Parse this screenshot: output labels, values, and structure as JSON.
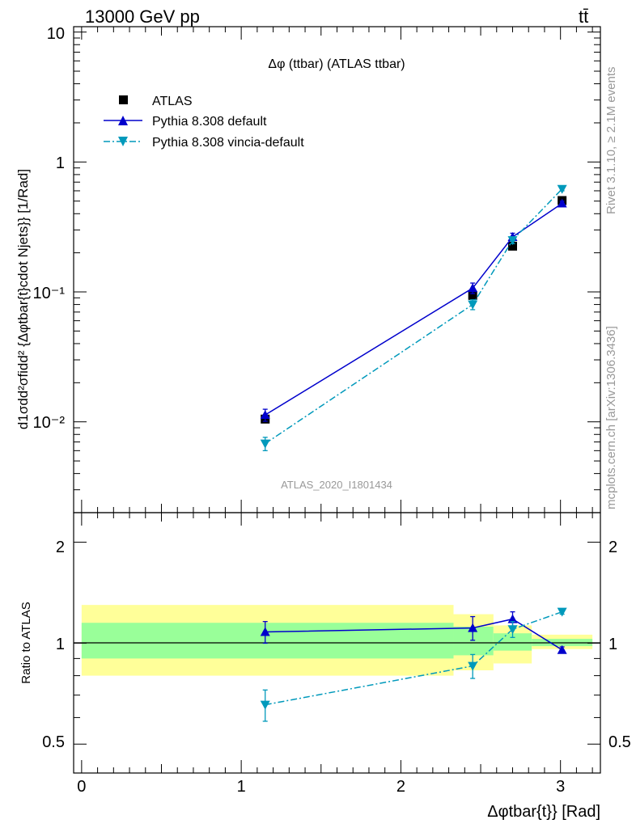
{
  "header": {
    "energy_label": "13000 GeV pp",
    "process_label": "tt̄"
  },
  "side_labels": {
    "rivet": "Rivet 3.1.10, ≥ 2.1M events",
    "mcplots": "mcplots.cern.ch [arXiv:1306.3436]"
  },
  "chart_data": [
    {
      "type": "scatter",
      "panel": "main",
      "title": "Δφ (ttbar) (ATLAS ttbar)",
      "watermark": "ATLAS_2020_I1801434",
      "ylabel": "d1σdd²σfidd² {Δφtbar{t}cdot Njets}} [1/Rad]",
      "yscale": "log",
      "ylim": [
        0.002,
        11
      ],
      "xlim": [
        -0.05,
        3.25
      ],
      "ytick_labels": [
        "10",
        "1",
        "10⁻¹",
        "10⁻²"
      ],
      "x": [
        1.15,
        2.45,
        2.7,
        3.01
      ],
      "series": [
        {
          "name": "ATLAS",
          "values": [
            0.0105,
            0.094,
            0.225,
            0.505
          ],
          "errors": [
            0.0005,
            0.004,
            0.01,
            0.02
          ],
          "color": "#000000",
          "marker": "square"
        },
        {
          "name": "Pythia 8.308 default",
          "values": [
            0.0113,
            0.107,
            0.265,
            0.48
          ],
          "errors": [
            0.0012,
            0.01,
            0.018,
            0.02
          ],
          "color": "#0000cc",
          "marker": "triangle-up",
          "line": "solid"
        },
        {
          "name": "Pythia 8.308 vincia-default",
          "values": [
            0.0068,
            0.08,
            0.25,
            0.62
          ],
          "errors": [
            0.0008,
            0.007,
            0.015,
            0.02
          ],
          "color": "#0099bb",
          "marker": "triangle-down",
          "line": "dashdot"
        }
      ],
      "legend_position": "top-left"
    },
    {
      "type": "scatter",
      "panel": "ratio",
      "ylabel": "Ratio to ATLAS",
      "xlabel": "Δφtbar{t}} [Rad]",
      "yscale": "log",
      "ylim": [
        0.41,
        2.45
      ],
      "xlim": [
        -0.05,
        3.25
      ],
      "x_ticks": [
        0,
        1,
        2,
        3
      ],
      "x_tick_labels": [
        "0",
        "1",
        "2",
        "3"
      ],
      "y_tick_labels": [
        "2",
        "1",
        "0.5"
      ],
      "bins": [
        [
          0,
          2.33
        ],
        [
          2.33,
          2.58
        ],
        [
          2.58,
          2.82
        ],
        [
          2.82,
          3.2
        ]
      ],
      "band_green": [
        [
          0.9,
          1.15
        ],
        [
          0.92,
          1.12
        ],
        [
          0.95,
          1.07
        ],
        [
          0.98,
          1.03
        ]
      ],
      "band_yellow": [
        [
          0.8,
          1.3
        ],
        [
          0.83,
          1.22
        ],
        [
          0.87,
          1.13
        ],
        [
          0.96,
          1.06
        ]
      ],
      "x": [
        1.15,
        2.45,
        2.7,
        3.01
      ],
      "series": [
        {
          "name": "Pythia 8.308 default",
          "values": [
            1.08,
            1.11,
            1.18,
            0.955
          ],
          "errors": [
            0.08,
            0.09,
            0.06,
            0.02
          ]
        },
        {
          "name": "Pythia 8.308 vincia-default",
          "values": [
            0.655,
            0.855,
            1.1,
            1.24
          ],
          "errors": [
            0.07,
            0.07,
            0.06,
            0.02
          ]
        }
      ]
    }
  ]
}
